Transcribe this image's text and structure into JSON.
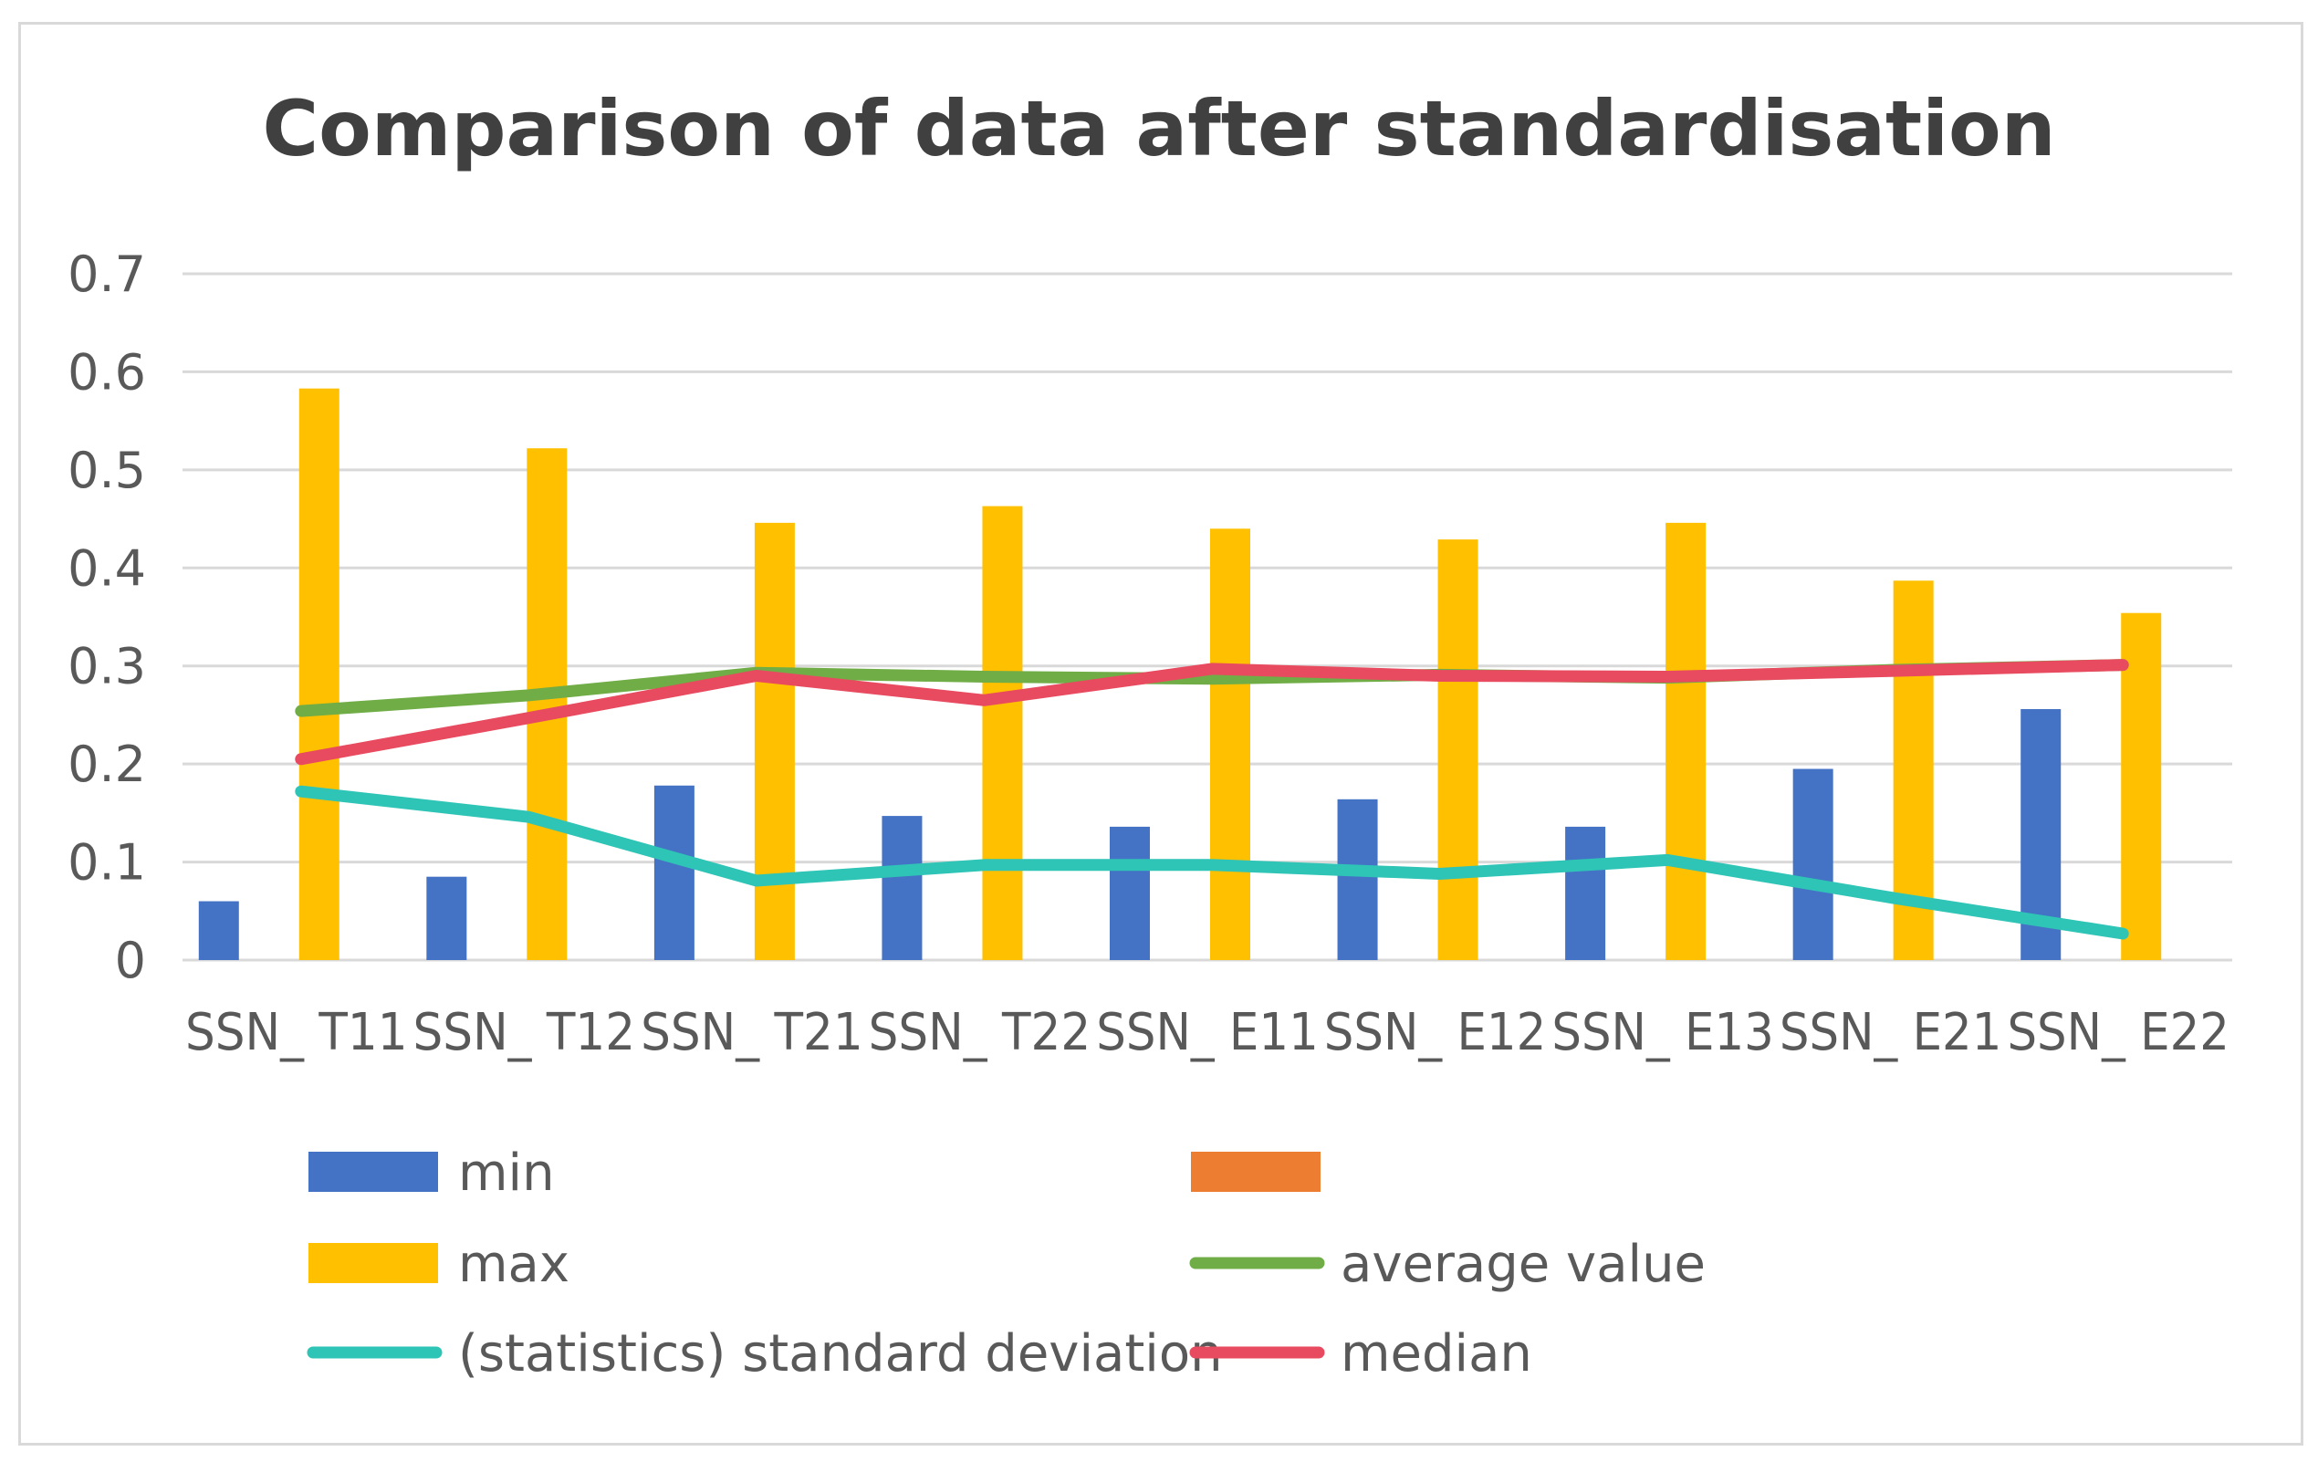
{
  "chart_data": {
    "type": "bar",
    "title": "Comparison of data after standardisation",
    "xlabel": "",
    "ylabel": "",
    "ylim": [
      0,
      0.7
    ],
    "yticks": [
      "0",
      "0.1",
      "0.2",
      "0.3",
      "0.4",
      "0.5",
      "0.6",
      "0.7"
    ],
    "grid": true,
    "legend_position": "bottom",
    "categories": [
      "SSN_ T11",
      "SSN_ T12",
      "SSN_ T21",
      "SSN_ T22",
      "SSN_ E11",
      "SSN_ E12",
      "SSN_ E13",
      "SSN_ E21",
      "SSN_ E22"
    ],
    "series": [
      {
        "name": "min",
        "kind": "bar",
        "color": "#4472C4",
        "values": [
          0.06,
          0.085,
          0.178,
          0.147,
          0.136,
          0.164,
          0.136,
          0.195,
          0.256
        ]
      },
      {
        "name": "",
        "kind": "bar",
        "color": "#ED7D31",
        "values": [
          null,
          null,
          null,
          null,
          null,
          null,
          null,
          null,
          null
        ]
      },
      {
        "name": "max",
        "kind": "bar",
        "color": "#FFC000",
        "values": [
          0.583,
          0.522,
          0.446,
          0.463,
          0.44,
          0.429,
          0.446,
          0.387,
          0.354
        ]
      },
      {
        "name": "average value",
        "kind": "line",
        "color": "#70AD47",
        "values": [
          0.254,
          0.27,
          0.293,
          0.289,
          0.287,
          0.291,
          0.288,
          0.296,
          0.301
        ]
      },
      {
        "name": "(statistics) standard deviation",
        "kind": "line",
        "color": "#2EC4B6",
        "values": [
          0.172,
          0.146,
          0.081,
          0.097,
          0.097,
          0.088,
          0.102,
          0.063,
          0.027
        ]
      },
      {
        "name": "median",
        "kind": "line",
        "color": "#E84A5F",
        "values": [
          0.205,
          0.247,
          0.29,
          0.265,
          0.297,
          0.29,
          0.289,
          0.295,
          0.301
        ]
      }
    ]
  }
}
